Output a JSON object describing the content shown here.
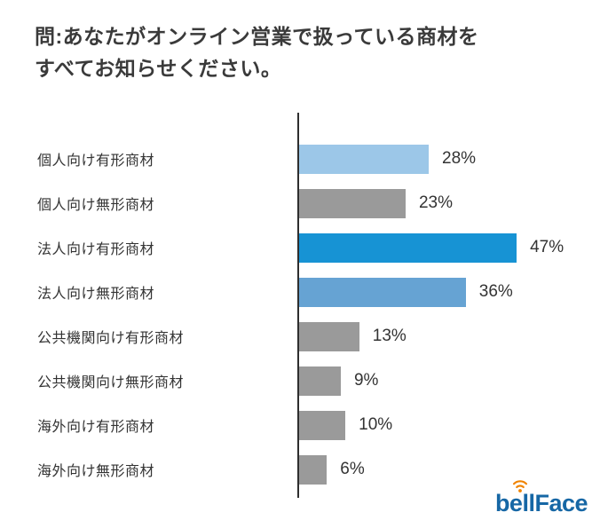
{
  "title": {
    "line1": "問:あなたがオンライン営業で扱っている商材を",
    "line2": "すべてお知らせください。"
  },
  "chart_data": {
    "type": "bar",
    "orientation": "horizontal",
    "title": "問:あなたがオンライン営業で扱っている商材をすべてお知らせください。",
    "categories": [
      "個人向け有形商材",
      "個人向け無形商材",
      "法人向け有形商材",
      "法人向け無形商材",
      "公共機関向け有形商材",
      "公共機関向け無形商材",
      "海外向け有形商材",
      "海外向け無形商材"
    ],
    "values": [
      28,
      23,
      47,
      36,
      13,
      9,
      10,
      6
    ],
    "value_labels": [
      "28%",
      "23%",
      "47%",
      "36%",
      "13%",
      "9%",
      "10%",
      "6%"
    ],
    "bar_colors": [
      "#9cc7e8",
      "#9a9a9a",
      "#1793d4",
      "#66a3d3",
      "#9a9a9a",
      "#9a9a9a",
      "#9a9a9a",
      "#9a9a9a"
    ],
    "xlim": [
      0,
      65
    ],
    "grid": false,
    "legend": false,
    "unit": "%"
  },
  "colors": {
    "highlight_blue": "#1793d4",
    "medium_blue": "#66a3d3",
    "light_blue": "#9cc7e8",
    "gray_bar": "#9a9a9a",
    "axis": "#2e2e2e",
    "text": "#333333",
    "title_text": "#3a3a3a"
  },
  "logo": {
    "text": "bellFace",
    "brand_blue": "#1667a5",
    "brand_orange": "#f08300",
    "icon": "signal-waves-icon"
  }
}
